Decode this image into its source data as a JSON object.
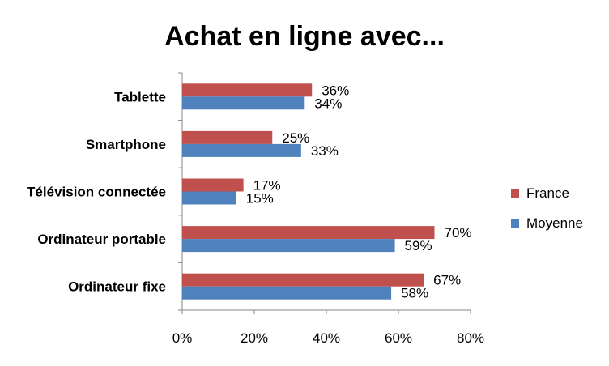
{
  "chart_data": {
    "type": "bar",
    "orientation": "horizontal",
    "title": "Achat en ligne avec...",
    "categories": [
      "Tablette",
      "Smartphone",
      "Télévision connectée",
      "Ordinateur portable",
      "Ordinateur fixe"
    ],
    "series": [
      {
        "name": "France",
        "color": "#c0504d",
        "values": [
          36,
          25,
          17,
          70,
          67
        ],
        "labels": [
          "36%",
          "25%",
          "17%",
          "70%",
          "67%"
        ]
      },
      {
        "name": "Moyenne",
        "color": "#4f81bd",
        "values": [
          34,
          33,
          15,
          59,
          58
        ],
        "labels": [
          "34%",
          "33%",
          "15%",
          "59%",
          "58%"
        ]
      }
    ],
    "xlim": [
      0,
      80
    ],
    "x_ticks": [
      "0%",
      "20%",
      "40%",
      "60%",
      "80%"
    ],
    "grid": false,
    "legend_position": "right"
  }
}
